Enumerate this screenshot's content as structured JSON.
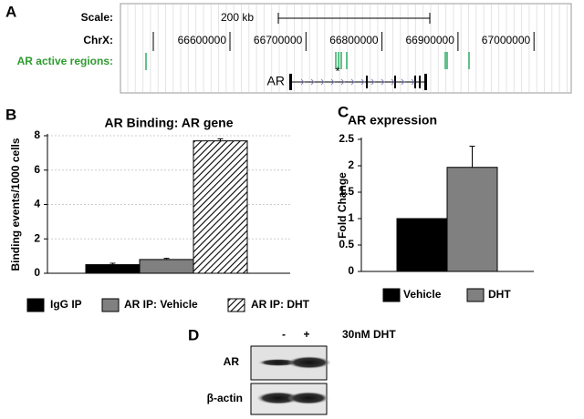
{
  "panels": {
    "letters": [
      "A",
      "B",
      "C",
      "D"
    ]
  },
  "browser": {
    "scale_label": "Scale:",
    "scale_text": "200 kb",
    "chrom_label": "ChrX:",
    "coordinates": [
      66600000,
      66700000,
      66800000,
      66900000,
      67000000
    ],
    "track_label": "AR active regions:",
    "gene_label": "AR",
    "marker": "*"
  },
  "chart_data": [
    {
      "type": "bar",
      "title": "AR Binding: AR gene",
      "y_label": "Binding events/1000 cells",
      "categories": [
        null
      ],
      "series": [
        {
          "name": "IgG IP",
          "color": "#000000",
          "values": [
            0.5
          ],
          "errors": [
            0.08
          ]
        },
        {
          "name": "AR IP: Vehicle",
          "color": "#808080",
          "values": [
            0.8
          ],
          "errors": [
            0.07
          ]
        },
        {
          "name": "AR IP: DHT",
          "color": "#ffffff",
          "hatch": true,
          "values": [
            7.7
          ],
          "errors": [
            0.12
          ]
        }
      ],
      "ylim": [
        0,
        8
      ],
      "yticks": [
        0,
        2,
        4,
        6,
        8
      ],
      "grid": true,
      "legend": "bottom"
    },
    {
      "type": "bar",
      "title": "AR expression",
      "y_label": "Fold Change",
      "categories": [
        null
      ],
      "series": [
        {
          "name": "Vehicle",
          "color": "#000000",
          "values": [
            1
          ]
        },
        {
          "name": "DHT",
          "color": "#808080",
          "values": [
            1.97
          ],
          "errors": [
            0.4
          ]
        }
      ],
      "ylim": [
        0,
        2.5
      ],
      "yticks": [
        0,
        0.5,
        1,
        1.5,
        2,
        2.5
      ],
      "grid": false,
      "legend": "bottom"
    }
  ],
  "blot": {
    "lanes": [
      "-",
      "+"
    ],
    "treatment": "30nM DHT",
    "rows": [
      "AR",
      "β-actin"
    ]
  }
}
